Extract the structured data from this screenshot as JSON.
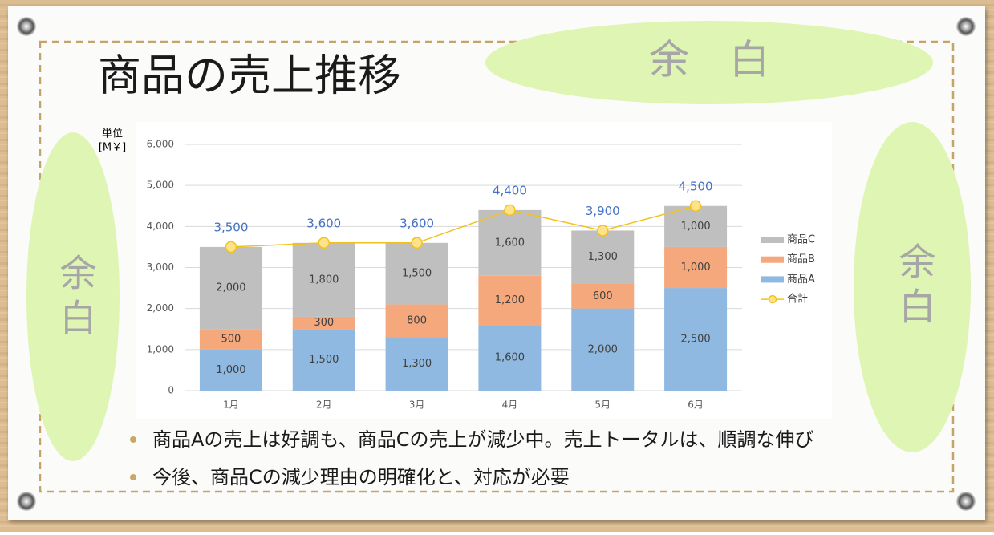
{
  "slide": {
    "margin_labels": [
      "余　白",
      "余白",
      "余白"
    ],
    "bullets": [
      "商品Aの売上は好調も、商品Cの売上が減少中。売上トータルは、順調な伸び",
      "今後、商品Cの減少理由の明確化と、対応が必要"
    ]
  },
  "chart_data": {
    "type": "bar",
    "stacked": true,
    "title": "商品の売上推移",
    "ylabel": [
      "単位",
      "[M￥]"
    ],
    "categories": [
      "1月",
      "2月",
      "3月",
      "4月",
      "5月",
      "6月"
    ],
    "series": [
      {
        "name": "商品A",
        "color": "#8fb9e1",
        "values": [
          1000,
          1500,
          1300,
          1600,
          2000,
          2500
        ],
        "value_labels": [
          "1,000",
          "1,500",
          "1,300",
          "1,600",
          "2,000",
          "2,500"
        ]
      },
      {
        "name": "商品B",
        "color": "#f4a87c",
        "values": [
          500,
          300,
          800,
          1200,
          600,
          1000
        ],
        "value_labels": [
          "500",
          "300",
          "800",
          "1,200",
          "600",
          "1,000"
        ]
      },
      {
        "name": "商品C",
        "color": "#bfbfbf",
        "values": [
          2000,
          1800,
          1500,
          1600,
          1300,
          1000
        ],
        "value_labels": [
          "2,000",
          "1,800",
          "1,500",
          "1,600",
          "1,300",
          "1,000"
        ]
      },
      {
        "name": "合計",
        "type": "line",
        "color": "#f2c21b",
        "values": [
          3500,
          3600,
          3600,
          4400,
          3900,
          4500
        ],
        "value_labels": [
          "3,500",
          "3,600",
          "3,600",
          "4,400",
          "3,900",
          "4,500"
        ]
      }
    ],
    "ylim": [
      0,
      6000
    ],
    "yticks": [
      0,
      {
        "value": 1000,
        "label": "1,000"
      },
      {
        "value": 2000,
        "label": "2,000"
      },
      {
        "value": 3000,
        "label": "3,000"
      },
      {
        "value": 4000,
        "label": "4,000"
      },
      {
        "value": 5000,
        "label": "5,000"
      },
      {
        "value": 6000,
        "label": "6,000"
      }
    ],
    "grid": true,
    "legend": "right"
  }
}
